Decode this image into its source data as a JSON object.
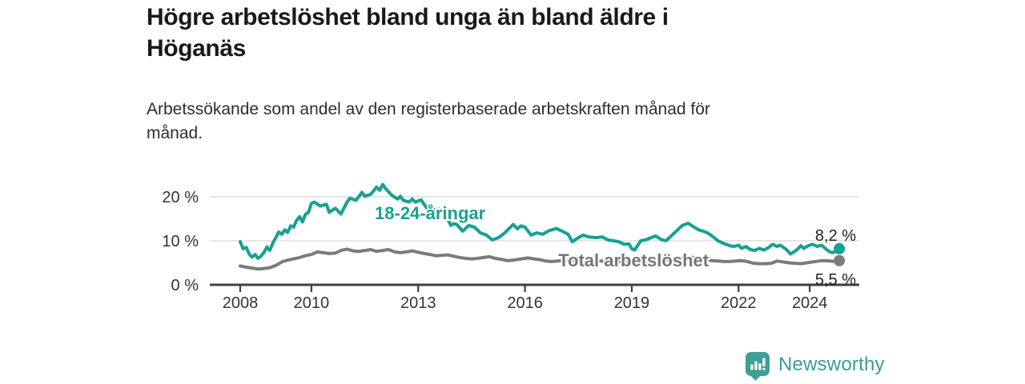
{
  "header": {
    "title_lines": [
      "Högre arbetslöshet bland unga än bland äldre i",
      "Höganäs"
    ],
    "subtitle_lines": [
      "Arbetssökande som andel av den registerbaserade arbetskraften månad för",
      "månad."
    ]
  },
  "footer": {
    "brand": "Newsworthy",
    "logo_icon": "bar-chart-speech-bubble-icon"
  },
  "colors": {
    "young_line": "#16a192",
    "total_line": "#7b7b7b",
    "total_label": "#757575",
    "grid": "#d8d8d8",
    "axis": "#3f3f3f",
    "tick_text": "#333333",
    "end_label_text": "#222222",
    "brand_teal": "#3f9f94"
  },
  "chart_data": {
    "type": "line",
    "title": "Högre arbetslöshet bland unga än bland äldre i Höganäs",
    "subtitle": "Arbetssökande som andel av den registerbaserade arbetskraften månad för månad.",
    "xlabel": "",
    "ylabel": "",
    "grid": "horizontal",
    "legend_position": "inline-labels",
    "x_axis": {
      "ticks": [
        2008,
        2010,
        2013,
        2016,
        2019,
        2022,
        2024
      ],
      "range": [
        2007.15,
        2025.4
      ]
    },
    "y_axis": {
      "ticks": [
        0,
        10,
        20
      ],
      "tick_labels": [
        "0 %",
        "10 %",
        "20 %"
      ],
      "range": [
        0,
        23.5
      ],
      "unit": "%"
    },
    "series": [
      {
        "name": "18-24-åringar",
        "color": "#16a192",
        "end_value": 8.2,
        "end_label": "8,2 %",
        "end_label_position": "above",
        "inline_label": {
          "x": 2011.78,
          "y": 16.4,
          "anchor": "start"
        },
        "points": [
          [
            2008.0,
            9.8
          ],
          [
            2008.08,
            8.2
          ],
          [
            2008.17,
            8.5
          ],
          [
            2008.25,
            7.0
          ],
          [
            2008.33,
            6.3
          ],
          [
            2008.42,
            6.9
          ],
          [
            2008.5,
            6.0
          ],
          [
            2008.58,
            6.5
          ],
          [
            2008.67,
            7.4
          ],
          [
            2008.75,
            8.6
          ],
          [
            2008.83,
            7.8
          ],
          [
            2008.92,
            9.6
          ],
          [
            2009.0,
            10.7
          ],
          [
            2009.08,
            12.0
          ],
          [
            2009.17,
            11.5
          ],
          [
            2009.25,
            12.5
          ],
          [
            2009.33,
            11.9
          ],
          [
            2009.42,
            13.4
          ],
          [
            2009.5,
            13.1
          ],
          [
            2009.58,
            14.6
          ],
          [
            2009.67,
            15.5
          ],
          [
            2009.75,
            14.3
          ],
          [
            2009.83,
            16.0
          ],
          [
            2009.92,
            16.5
          ],
          [
            2010.0,
            18.5
          ],
          [
            2010.08,
            18.8
          ],
          [
            2010.25,
            17.9
          ],
          [
            2010.42,
            18.3
          ],
          [
            2010.5,
            16.5
          ],
          [
            2010.67,
            17.4
          ],
          [
            2010.83,
            16.1
          ],
          [
            2011.0,
            18.8
          ],
          [
            2011.08,
            19.7
          ],
          [
            2011.25,
            19.2
          ],
          [
            2011.42,
            21.0
          ],
          [
            2011.5,
            20.1
          ],
          [
            2011.67,
            20.6
          ],
          [
            2011.83,
            22.2
          ],
          [
            2011.92,
            21.5
          ],
          [
            2012.0,
            22.8
          ],
          [
            2012.08,
            21.9
          ],
          [
            2012.25,
            20.4
          ],
          [
            2012.42,
            19.5
          ],
          [
            2012.5,
            20.1
          ],
          [
            2012.58,
            19.2
          ],
          [
            2012.75,
            18.8
          ],
          [
            2012.83,
            19.5
          ],
          [
            2012.92,
            18.8
          ],
          [
            2013.08,
            19.3
          ],
          [
            2013.25,
            17.3
          ],
          [
            2013.33,
            17.8
          ],
          [
            2013.5,
            16.8
          ],
          [
            2013.58,
            17.2
          ],
          [
            2013.75,
            16.2
          ],
          [
            2013.92,
            13.5
          ],
          [
            2014.0,
            13.9
          ],
          [
            2014.08,
            13.7
          ],
          [
            2014.25,
            12.2
          ],
          [
            2014.42,
            13.5
          ],
          [
            2014.58,
            13.1
          ],
          [
            2014.75,
            11.8
          ],
          [
            2014.92,
            11.3
          ],
          [
            2015.08,
            10.2
          ],
          [
            2015.25,
            10.7
          ],
          [
            2015.42,
            11.7
          ],
          [
            2015.58,
            13.0
          ],
          [
            2015.67,
            13.7
          ],
          [
            2015.79,
            12.7
          ],
          [
            2015.88,
            13.4
          ],
          [
            2016.0,
            13.1
          ],
          [
            2016.17,
            11.3
          ],
          [
            2016.33,
            11.8
          ],
          [
            2016.5,
            11.5
          ],
          [
            2016.67,
            12.3
          ],
          [
            2016.88,
            12.8
          ],
          [
            2017.04,
            12.2
          ],
          [
            2017.21,
            11.5
          ],
          [
            2017.33,
            9.8
          ],
          [
            2017.5,
            10.7
          ],
          [
            2017.63,
            11.3
          ],
          [
            2017.79,
            10.9
          ],
          [
            2018.0,
            10.7
          ],
          [
            2018.17,
            10.9
          ],
          [
            2018.33,
            10.2
          ],
          [
            2018.5,
            10.0
          ],
          [
            2018.63,
            9.8
          ],
          [
            2018.79,
            9.2
          ],
          [
            2018.92,
            9.3
          ],
          [
            2019.0,
            8.2
          ],
          [
            2019.08,
            7.9
          ],
          [
            2019.25,
            10.0
          ],
          [
            2019.42,
            10.3
          ],
          [
            2019.54,
            10.7
          ],
          [
            2019.67,
            11.1
          ],
          [
            2019.83,
            10.3
          ],
          [
            2019.96,
            10.0
          ],
          [
            2020.08,
            10.9
          ],
          [
            2020.25,
            12.2
          ],
          [
            2020.42,
            13.5
          ],
          [
            2020.58,
            14.0
          ],
          [
            2020.75,
            13.1
          ],
          [
            2020.88,
            12.5
          ],
          [
            2021.0,
            12.2
          ],
          [
            2021.13,
            11.8
          ],
          [
            2021.29,
            10.9
          ],
          [
            2021.42,
            10.0
          ],
          [
            2021.58,
            9.4
          ],
          [
            2021.75,
            8.9
          ],
          [
            2021.88,
            8.7
          ],
          [
            2022.0,
            9.0
          ],
          [
            2022.08,
            8.3
          ],
          [
            2022.21,
            8.7
          ],
          [
            2022.33,
            8.0
          ],
          [
            2022.46,
            7.8
          ],
          [
            2022.58,
            8.3
          ],
          [
            2022.71,
            7.9
          ],
          [
            2022.83,
            8.4
          ],
          [
            2022.96,
            9.2
          ],
          [
            2023.08,
            8.7
          ],
          [
            2023.17,
            9.0
          ],
          [
            2023.33,
            8.1
          ],
          [
            2023.46,
            7.0
          ],
          [
            2023.63,
            7.9
          ],
          [
            2023.75,
            8.9
          ],
          [
            2023.83,
            8.3
          ],
          [
            2023.96,
            8.9
          ],
          [
            2024.08,
            9.2
          ],
          [
            2024.21,
            8.7
          ],
          [
            2024.33,
            9.0
          ],
          [
            2024.46,
            8.1
          ],
          [
            2024.54,
            7.6
          ],
          [
            2024.63,
            7.3
          ],
          [
            2024.75,
            7.6
          ],
          [
            2024.83,
            8.2
          ]
        ]
      },
      {
        "name": "Total arbetslöshet",
        "color": "#7b7b7b",
        "end_value": 5.5,
        "end_label": "5,5 %",
        "end_label_position": "below",
        "inline_label": {
          "x": 2019.05,
          "y": 5.6,
          "anchor": "middle"
        },
        "points": [
          [
            2008.0,
            4.3
          ],
          [
            2008.17,
            4.0
          ],
          [
            2008.33,
            3.8
          ],
          [
            2008.5,
            3.6
          ],
          [
            2008.67,
            3.7
          ],
          [
            2008.83,
            3.9
          ],
          [
            2009.0,
            4.4
          ],
          [
            2009.17,
            5.2
          ],
          [
            2009.33,
            5.6
          ],
          [
            2009.5,
            5.9
          ],
          [
            2009.67,
            6.2
          ],
          [
            2009.83,
            6.6
          ],
          [
            2010.0,
            6.9
          ],
          [
            2010.17,
            7.5
          ],
          [
            2010.33,
            7.3
          ],
          [
            2010.5,
            7.1
          ],
          [
            2010.67,
            7.2
          ],
          [
            2010.83,
            7.8
          ],
          [
            2011.0,
            8.1
          ],
          [
            2011.17,
            7.7
          ],
          [
            2011.33,
            7.6
          ],
          [
            2011.5,
            7.8
          ],
          [
            2011.67,
            8.0
          ],
          [
            2011.83,
            7.6
          ],
          [
            2012.0,
            7.8
          ],
          [
            2012.17,
            8.0
          ],
          [
            2012.33,
            7.5
          ],
          [
            2012.5,
            7.3
          ],
          [
            2012.67,
            7.5
          ],
          [
            2012.83,
            7.7
          ],
          [
            2013.0,
            7.4
          ],
          [
            2013.17,
            7.1
          ],
          [
            2013.33,
            6.9
          ],
          [
            2013.5,
            6.6
          ],
          [
            2013.67,
            6.7
          ],
          [
            2013.83,
            6.8
          ],
          [
            2014.0,
            6.5
          ],
          [
            2014.17,
            6.2
          ],
          [
            2014.33,
            6.0
          ],
          [
            2014.5,
            5.9
          ],
          [
            2014.67,
            6.0
          ],
          [
            2014.83,
            6.2
          ],
          [
            2015.0,
            6.4
          ],
          [
            2015.17,
            6.0
          ],
          [
            2015.33,
            5.8
          ],
          [
            2015.5,
            5.5
          ],
          [
            2015.67,
            5.6
          ],
          [
            2015.83,
            5.8
          ],
          [
            2016.08,
            6.1
          ],
          [
            2016.25,
            5.9
          ],
          [
            2016.42,
            5.7
          ],
          [
            2016.58,
            5.4
          ],
          [
            2016.75,
            5.3
          ],
          [
            2016.92,
            5.4
          ],
          [
            2017.08,
            5.5
          ],
          [
            2017.25,
            5.6
          ],
          [
            2017.42,
            5.4
          ],
          [
            2017.58,
            5.3
          ],
          [
            2017.75,
            5.4
          ],
          [
            2017.92,
            5.5
          ],
          [
            2018.08,
            5.4
          ],
          [
            2018.25,
            5.4
          ],
          [
            2018.42,
            5.3
          ],
          [
            2018.58,
            5.2
          ],
          [
            2018.75,
            5.3
          ],
          [
            2018.92,
            5.3
          ],
          [
            2019.08,
            5.2
          ],
          [
            2019.25,
            5.2
          ],
          [
            2019.42,
            5.3
          ],
          [
            2019.58,
            5.3
          ],
          [
            2019.75,
            5.5
          ],
          [
            2019.92,
            5.7
          ],
          [
            2020.08,
            5.6
          ],
          [
            2020.25,
            6.0
          ],
          [
            2020.42,
            6.2
          ],
          [
            2020.58,
            6.3
          ],
          [
            2020.75,
            6.2
          ],
          [
            2020.92,
            6.0
          ],
          [
            2021.08,
            5.7
          ],
          [
            2021.25,
            5.5
          ],
          [
            2021.42,
            5.4
          ],
          [
            2021.58,
            5.3
          ],
          [
            2021.75,
            5.3
          ],
          [
            2021.92,
            5.4
          ],
          [
            2022.08,
            5.5
          ],
          [
            2022.25,
            5.3
          ],
          [
            2022.42,
            4.9
          ],
          [
            2022.58,
            4.8
          ],
          [
            2022.75,
            4.8
          ],
          [
            2022.92,
            4.9
          ],
          [
            2023.08,
            5.4
          ],
          [
            2023.25,
            5.2
          ],
          [
            2023.42,
            5.0
          ],
          [
            2023.58,
            4.9
          ],
          [
            2023.75,
            4.8
          ],
          [
            2023.92,
            5.0
          ],
          [
            2024.08,
            5.2
          ],
          [
            2024.25,
            5.4
          ],
          [
            2024.42,
            5.5
          ],
          [
            2024.58,
            5.4
          ],
          [
            2024.71,
            5.3
          ],
          [
            2024.83,
            5.5
          ]
        ]
      }
    ]
  }
}
